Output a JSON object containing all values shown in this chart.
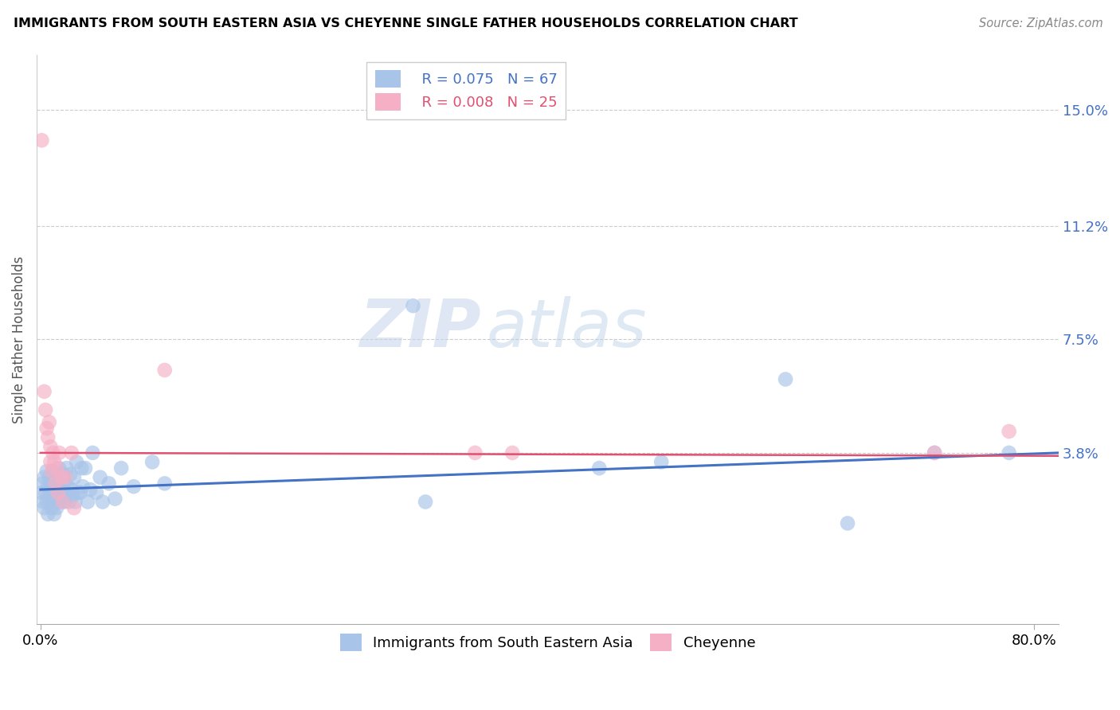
{
  "title": "IMMIGRANTS FROM SOUTH EASTERN ASIA VS CHEYENNE SINGLE FATHER HOUSEHOLDS CORRELATION CHART",
  "source": "Source: ZipAtlas.com",
  "ylabel": "Single Father Households",
  "yticks": [
    0.0,
    0.038,
    0.075,
    0.112,
    0.15
  ],
  "ytick_labels": [
    "",
    "3.8%",
    "7.5%",
    "11.2%",
    "15.0%"
  ],
  "xlim": [
    -0.003,
    0.82
  ],
  "ylim": [
    -0.018,
    0.168
  ],
  "watermark_zip": "ZIP",
  "watermark_atlas": "atlas",
  "legend_blue_r": "R = 0.075",
  "legend_blue_n": "N = 67",
  "legend_pink_r": "R = 0.008",
  "legend_pink_n": "N = 25",
  "blue_color": "#a8c4e8",
  "pink_color": "#f5b0c5",
  "trend_blue": "#4472c4",
  "trend_pink": "#e05070",
  "label_blue": "Immigrants from South Eastern Asia",
  "label_pink": "Cheyenne",
  "blue_scatter": [
    [
      0.001,
      0.025
    ],
    [
      0.002,
      0.022
    ],
    [
      0.002,
      0.028
    ],
    [
      0.003,
      0.02
    ],
    [
      0.003,
      0.03
    ],
    [
      0.004,
      0.025
    ],
    [
      0.005,
      0.022
    ],
    [
      0.005,
      0.032
    ],
    [
      0.006,
      0.027
    ],
    [
      0.006,
      0.018
    ],
    [
      0.007,
      0.025
    ],
    [
      0.007,
      0.03
    ],
    [
      0.008,
      0.022
    ],
    [
      0.008,
      0.028
    ],
    [
      0.009,
      0.02
    ],
    [
      0.009,
      0.027
    ],
    [
      0.01,
      0.025
    ],
    [
      0.01,
      0.032
    ],
    [
      0.011,
      0.018
    ],
    [
      0.011,
      0.028
    ],
    [
      0.012,
      0.023
    ],
    [
      0.012,
      0.031
    ],
    [
      0.013,
      0.025
    ],
    [
      0.013,
      0.02
    ],
    [
      0.014,
      0.028
    ],
    [
      0.015,
      0.022
    ],
    [
      0.015,
      0.033
    ],
    [
      0.016,
      0.026
    ],
    [
      0.017,
      0.024
    ],
    [
      0.018,
      0.031
    ],
    [
      0.019,
      0.022
    ],
    [
      0.019,
      0.028
    ],
    [
      0.02,
      0.025
    ],
    [
      0.021,
      0.033
    ],
    [
      0.022,
      0.027
    ],
    [
      0.023,
      0.022
    ],
    [
      0.024,
      0.031
    ],
    [
      0.025,
      0.026
    ],
    [
      0.026,
      0.024
    ],
    [
      0.027,
      0.03
    ],
    [
      0.028,
      0.022
    ],
    [
      0.029,
      0.035
    ],
    [
      0.03,
      0.025
    ],
    [
      0.032,
      0.025
    ],
    [
      0.033,
      0.033
    ],
    [
      0.034,
      0.027
    ],
    [
      0.036,
      0.033
    ],
    [
      0.038,
      0.022
    ],
    [
      0.04,
      0.026
    ],
    [
      0.042,
      0.038
    ],
    [
      0.045,
      0.025
    ],
    [
      0.048,
      0.03
    ],
    [
      0.05,
      0.022
    ],
    [
      0.055,
      0.028
    ],
    [
      0.06,
      0.023
    ],
    [
      0.065,
      0.033
    ],
    [
      0.075,
      0.027
    ],
    [
      0.09,
      0.035
    ],
    [
      0.1,
      0.028
    ],
    [
      0.3,
      0.086
    ],
    [
      0.31,
      0.022
    ],
    [
      0.45,
      0.033
    ],
    [
      0.5,
      0.035
    ],
    [
      0.6,
      0.062
    ],
    [
      0.65,
      0.015
    ],
    [
      0.72,
      0.038
    ],
    [
      0.78,
      0.038
    ]
  ],
  "pink_scatter": [
    [
      0.001,
      0.14
    ],
    [
      0.003,
      0.058
    ],
    [
      0.004,
      0.052
    ],
    [
      0.005,
      0.046
    ],
    [
      0.006,
      0.043
    ],
    [
      0.007,
      0.048
    ],
    [
      0.008,
      0.035
    ],
    [
      0.008,
      0.04
    ],
    [
      0.009,
      0.032
    ],
    [
      0.01,
      0.038
    ],
    [
      0.011,
      0.035
    ],
    [
      0.012,
      0.028
    ],
    [
      0.013,
      0.033
    ],
    [
      0.014,
      0.025
    ],
    [
      0.015,
      0.038
    ],
    [
      0.017,
      0.03
    ],
    [
      0.018,
      0.022
    ],
    [
      0.02,
      0.03
    ],
    [
      0.025,
      0.038
    ],
    [
      0.027,
      0.02
    ],
    [
      0.1,
      0.065
    ],
    [
      0.35,
      0.038
    ],
    [
      0.38,
      0.038
    ],
    [
      0.72,
      0.038
    ],
    [
      0.78,
      0.045
    ]
  ],
  "blue_trend_x": [
    0.0,
    0.82
  ],
  "blue_trend_y": [
    0.026,
    0.038
  ],
  "pink_trend_x": [
    0.0,
    0.82
  ],
  "pink_trend_y": [
    0.038,
    0.037
  ]
}
